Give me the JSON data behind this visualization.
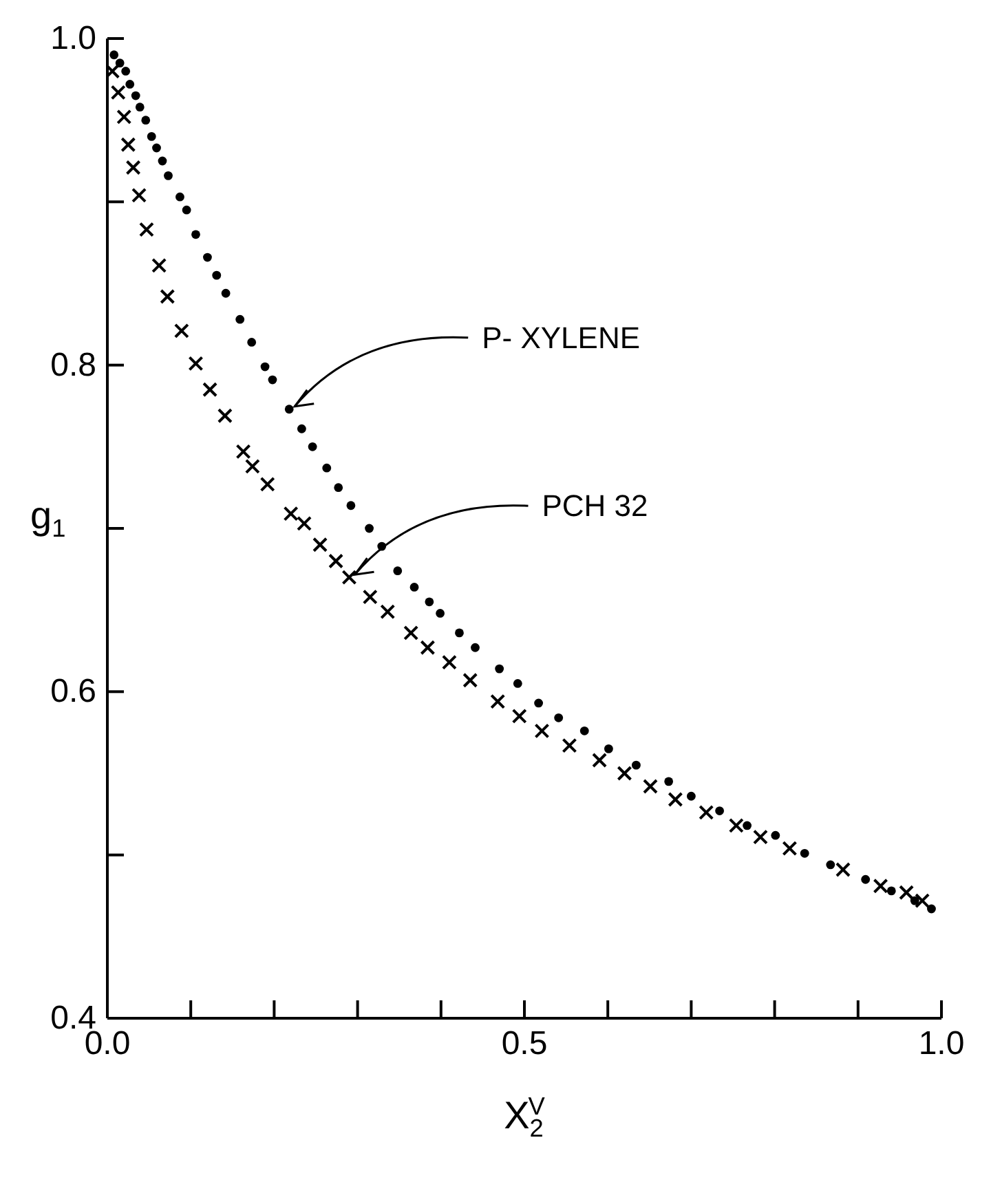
{
  "chart_data": {
    "type": "scatter",
    "xlabel": "X$_{2}$$^{V}$",
    "ylabel": "g$_{1}$",
    "xlim": [
      0,
      1
    ],
    "ylim": [
      0.4,
      1.0
    ],
    "xticks": [
      {
        "value": 0,
        "label": "0.0"
      },
      {
        "value": 0.1,
        "label": null
      },
      {
        "value": 0.2,
        "label": null
      },
      {
        "value": 0.3,
        "label": null
      },
      {
        "value": 0.4,
        "label": null
      },
      0.5,
      {
        "value": 0.6,
        "label": null
      },
      {
        "value": 0.7,
        "label": null
      },
      {
        "value": 0.8,
        "label": null
      },
      {
        "value": 0.9,
        "label": null
      },
      {
        "value": 1,
        "label": "1.0"
      }
    ],
    "yticks": [
      0.4,
      {
        "value": 0.5,
        "label": null
      },
      0.6,
      {
        "value": 0.7,
        "label": null
      },
      0.8,
      {
        "value": 0.9,
        "label": null
      },
      {
        "value": 1,
        "label": "1.0"
      }
    ],
    "grid": false,
    "legend": false,
    "series": [
      {
        "color": "#000000",
        "marker": "circle",
        "x": [
          0.008,
          0.015,
          0.022,
          0.027,
          0.034,
          0.039,
          0.046,
          0.053,
          0.059,
          0.066,
          0.073,
          0.087,
          0.095,
          0.106,
          0.12,
          0.131,
          0.142,
          0.159,
          0.173,
          0.189,
          0.198,
          0.218,
          0.233,
          0.246,
          0.263,
          0.277,
          0.292,
          0.314,
          0.329,
          0.348,
          0.368,
          0.386,
          0.399,
          0.422,
          0.441,
          0.47,
          0.492,
          0.517,
          0.541,
          0.572,
          0.601,
          0.634,
          0.673,
          0.7,
          0.734,
          0.767,
          0.801,
          0.836,
          0.867,
          0.909,
          0.94,
          0.968,
          0.988
        ],
        "values": [
          0.99,
          0.985,
          0.98,
          0.972,
          0.965,
          0.958,
          0.95,
          0.94,
          0.933,
          0.925,
          0.916,
          0.903,
          0.895,
          0.88,
          0.866,
          0.855,
          0.844,
          0.828,
          0.814,
          0.799,
          0.791,
          0.773,
          0.761,
          0.75,
          0.737,
          0.725,
          0.714,
          0.7,
          0.689,
          0.674,
          0.664,
          0.655,
          0.648,
          0.636,
          0.627,
          0.614,
          0.605,
          0.593,
          0.584,
          0.576,
          0.565,
          0.555,
          0.545,
          0.536,
          0.527,
          0.518,
          0.512,
          0.501,
          0.494,
          0.485,
          0.478,
          0.472,
          0.467
        ]
      },
      {
        "color": "#000000",
        "marker": "cross",
        "x": [
          0.006,
          0.013,
          0.02,
          0.025,
          0.031,
          0.038,
          0.047,
          0.062,
          0.072,
          0.089,
          0.106,
          0.123,
          0.141,
          0.163,
          0.174,
          0.192,
          0.22,
          0.236,
          0.255,
          0.274,
          0.29,
          0.315,
          0.336,
          0.364,
          0.384,
          0.41,
          0.435,
          0.468,
          0.494,
          0.521,
          0.554,
          0.59,
          0.62,
          0.651,
          0.681,
          0.718,
          0.754,
          0.783,
          0.818,
          0.882,
          0.927,
          0.958,
          0.977
        ],
        "values": [
          0.98,
          0.967,
          0.952,
          0.935,
          0.921,
          0.904,
          0.883,
          0.861,
          0.842,
          0.821,
          0.801,
          0.785,
          0.769,
          0.747,
          0.738,
          0.727,
          0.709,
          0.703,
          0.69,
          0.68,
          0.67,
          0.658,
          0.649,
          0.636,
          0.627,
          0.618,
          0.607,
          0.594,
          0.585,
          0.576,
          0.567,
          0.558,
          0.55,
          0.542,
          0.534,
          0.526,
          0.518,
          0.511,
          0.504,
          0.491,
          0.481,
          0.477,
          0.472
        ]
      }
    ],
    "annotations": [
      {
        "text": "P- XYLENE",
        "x": 0.218,
        "y": 0.773
      },
      {
        "text": "PCH 32",
        "x": 0.29,
        "y": 0.67
      }
    ]
  }
}
